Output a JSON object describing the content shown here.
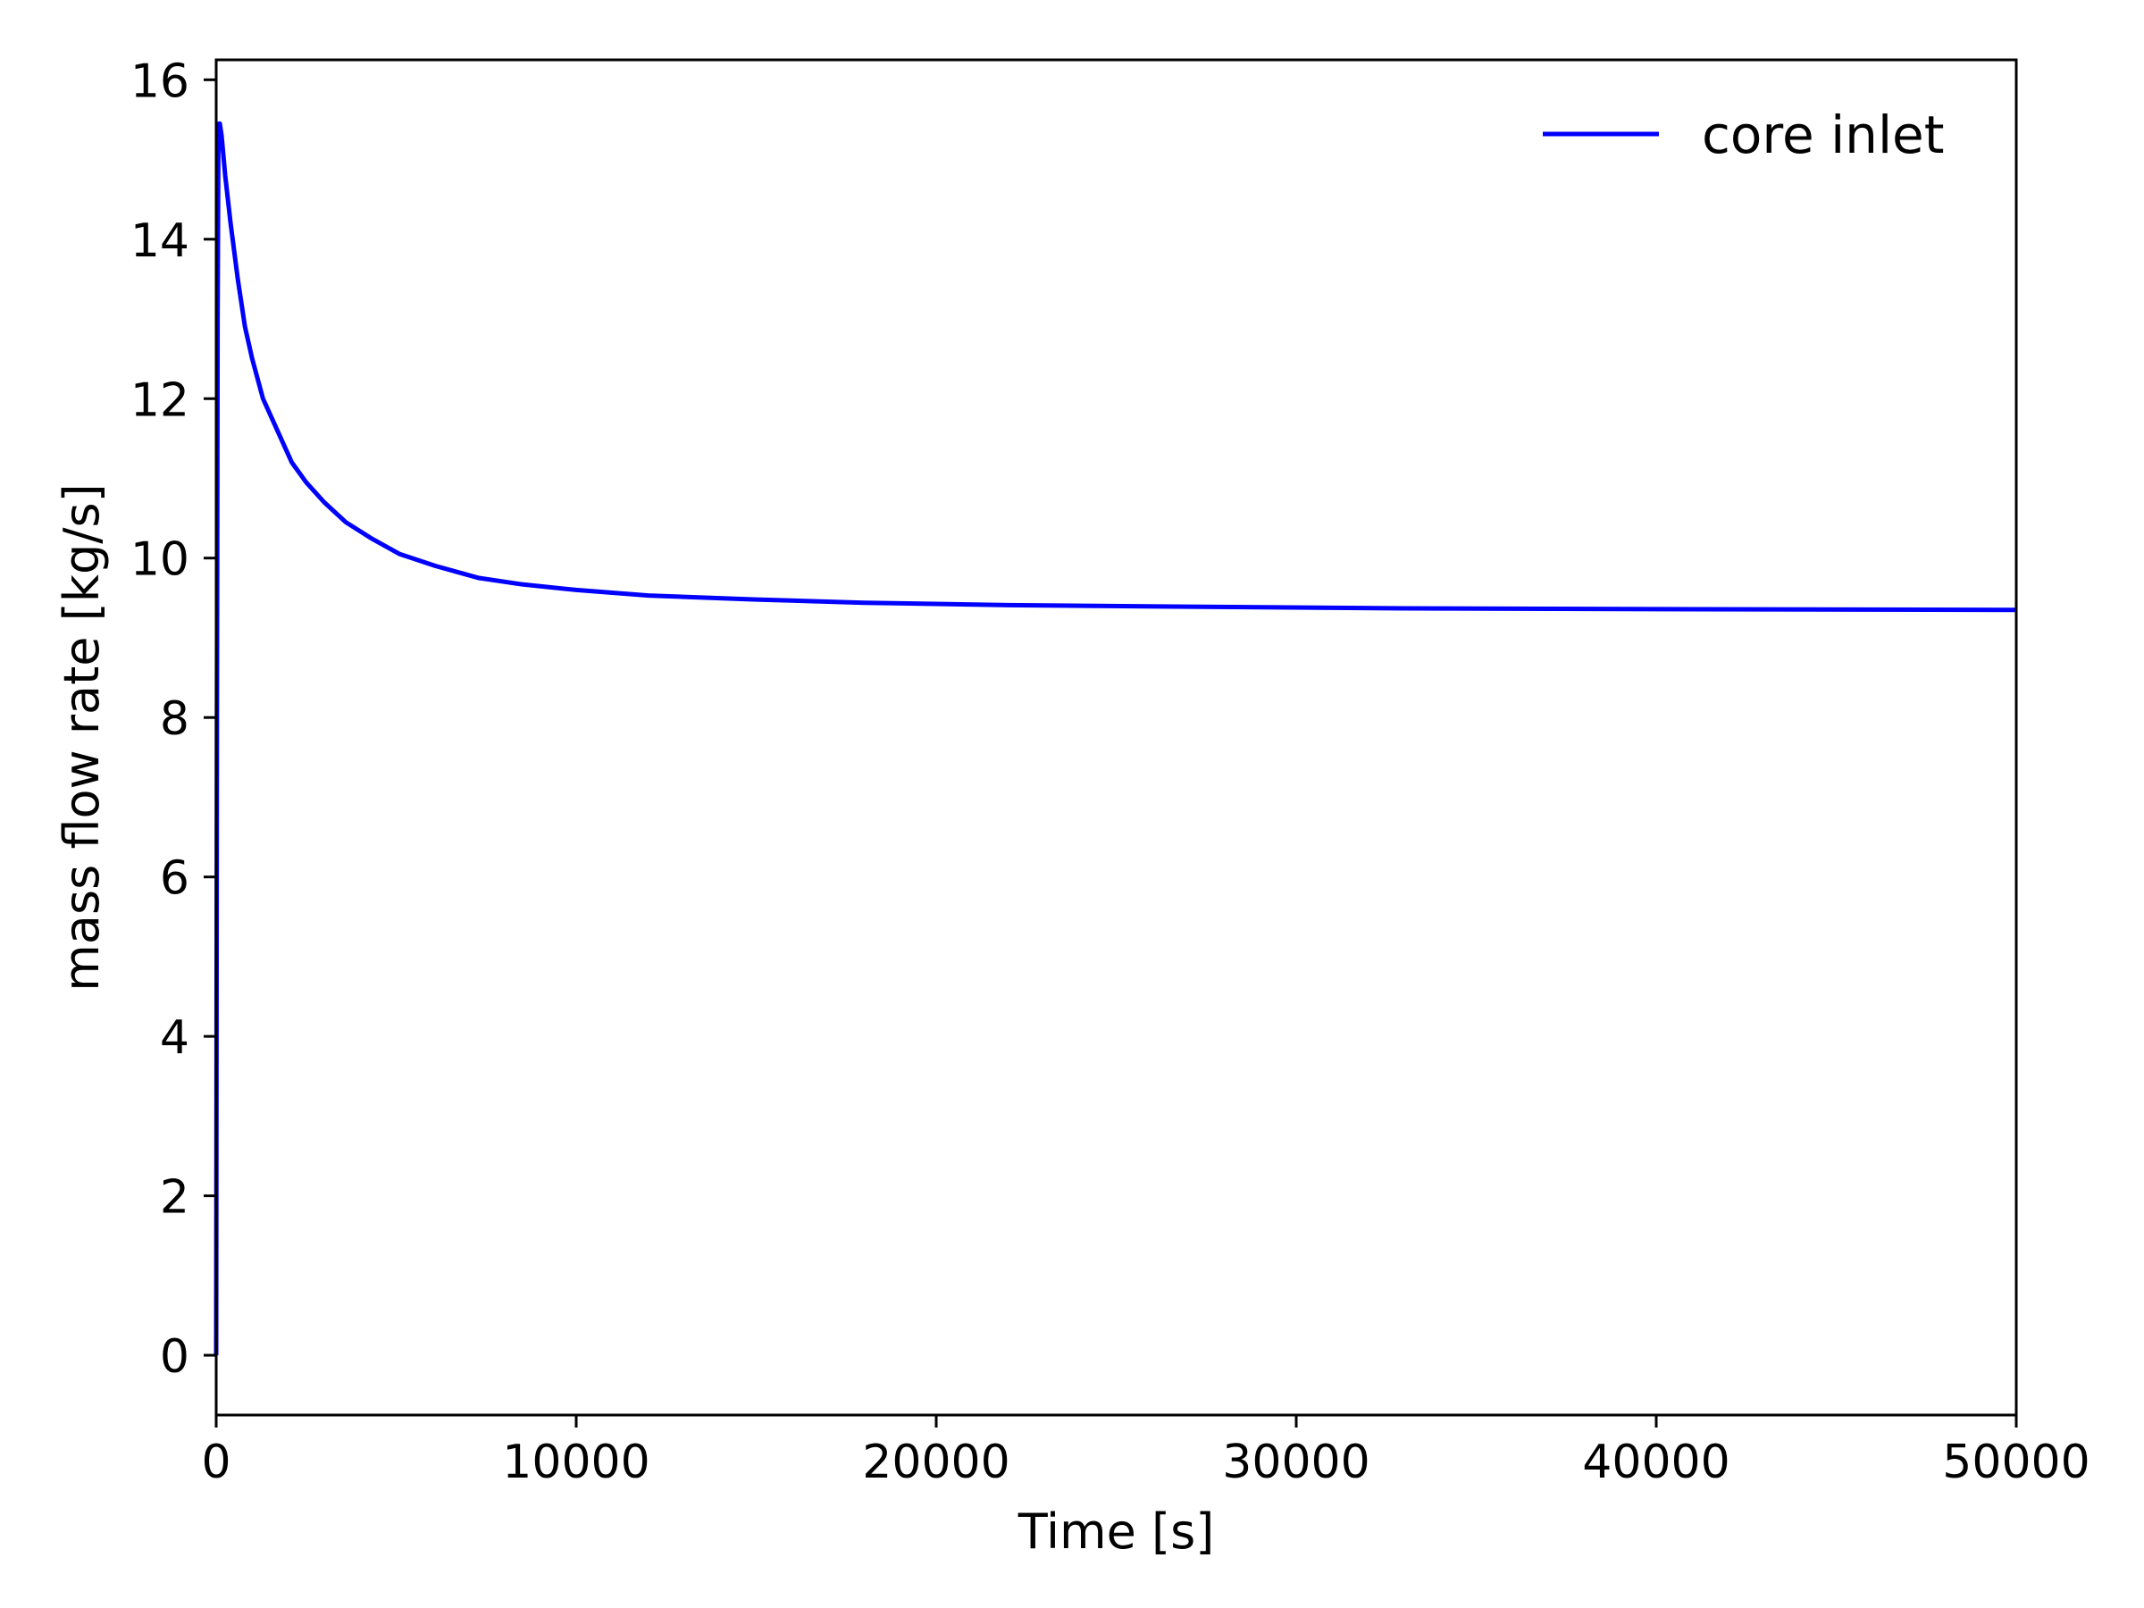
{
  "chart_data": {
    "type": "line",
    "title": "",
    "xlabel": "Time [s]",
    "ylabel": "mass flow rate [kg/s]",
    "xlim": [
      0,
      50000
    ],
    "ylim": [
      -0.75,
      16.25
    ],
    "xticks": [
      0,
      10000,
      20000,
      30000,
      40000,
      50000
    ],
    "xtick_labels": [
      "0",
      "10000",
      "20000",
      "30000",
      "40000",
      "50000"
    ],
    "yticks": [
      0,
      2,
      4,
      6,
      8,
      10,
      12,
      14,
      16
    ],
    "ytick_labels": [
      "0",
      "2",
      "4",
      "6",
      "8",
      "10",
      "12",
      "14",
      "16"
    ],
    "grid": false,
    "legend": {
      "position": "top-right",
      "frame": false
    },
    "series": [
      {
        "name": "core inlet",
        "color": "#0000ff",
        "x": [
          0,
          20,
          40,
          60,
          80,
          100,
          150,
          250,
          400,
          600,
          800,
          1000,
          1300,
          1700,
          2100,
          2500,
          3000,
          3600,
          4300,
          5100,
          6100,
          7300,
          8500,
          10000,
          12000,
          15000,
          18000,
          22000,
          27000,
          33000,
          40000,
          50000
        ],
        "y": [
          0,
          8.0,
          13.0,
          15.2,
          15.45,
          15.45,
          15.3,
          14.8,
          14.2,
          13.5,
          12.9,
          12.5,
          12.0,
          11.6,
          11.2,
          10.95,
          10.7,
          10.45,
          10.25,
          10.05,
          9.9,
          9.75,
          9.67,
          9.6,
          9.53,
          9.48,
          9.44,
          9.41,
          9.39,
          9.37,
          9.36,
          9.35
        ]
      }
    ]
  }
}
